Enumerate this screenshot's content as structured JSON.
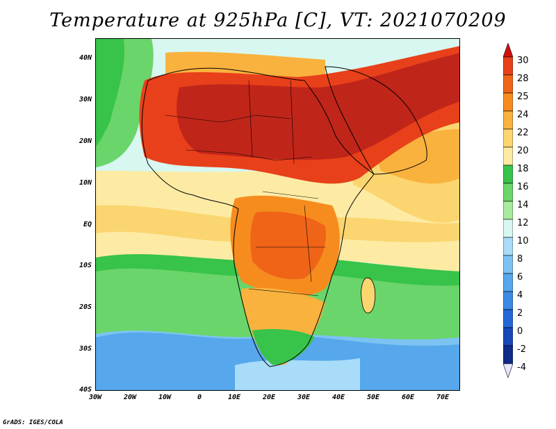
{
  "title": "Temperature at 925hPa [C], VT: 2021070209",
  "credit": "GrADS: IGES/COLA",
  "map": {
    "lat_labels": [
      "40N",
      "30N",
      "20N",
      "10N",
      "EQ",
      "10S",
      "20S",
      "30S",
      "40S"
    ],
    "lon_labels": [
      "30W",
      "20W",
      "10W",
      "0",
      "10E",
      "20E",
      "30E",
      "40E",
      "50E",
      "60E",
      "70E"
    ],
    "lat_range": [
      -40,
      45
    ],
    "lon_range": [
      -30,
      75
    ]
  },
  "colorbar": {
    "labels": [
      "30",
      "28",
      "25",
      "24",
      "22",
      "20",
      "18",
      "16",
      "14",
      "12",
      "10",
      "8",
      "6",
      "4",
      "2",
      "0",
      "-2",
      "-4"
    ],
    "colors": [
      "#c0251a",
      "#e8401a",
      "#f06418",
      "#f78c1e",
      "#f9b23e",
      "#fbd570",
      "#fdeba4",
      "#38c34a",
      "#6ad56a",
      "#a6ec9c",
      "#d8f7f0",
      "#a8dcf8",
      "#7cc3f2",
      "#56a7eb",
      "#3b8ae3",
      "#2468d8",
      "#1648b8",
      "#0e2a8a",
      "#000a5a"
    ],
    "top_color": "#d01010",
    "bottom_color": "#e8e8ff"
  }
}
